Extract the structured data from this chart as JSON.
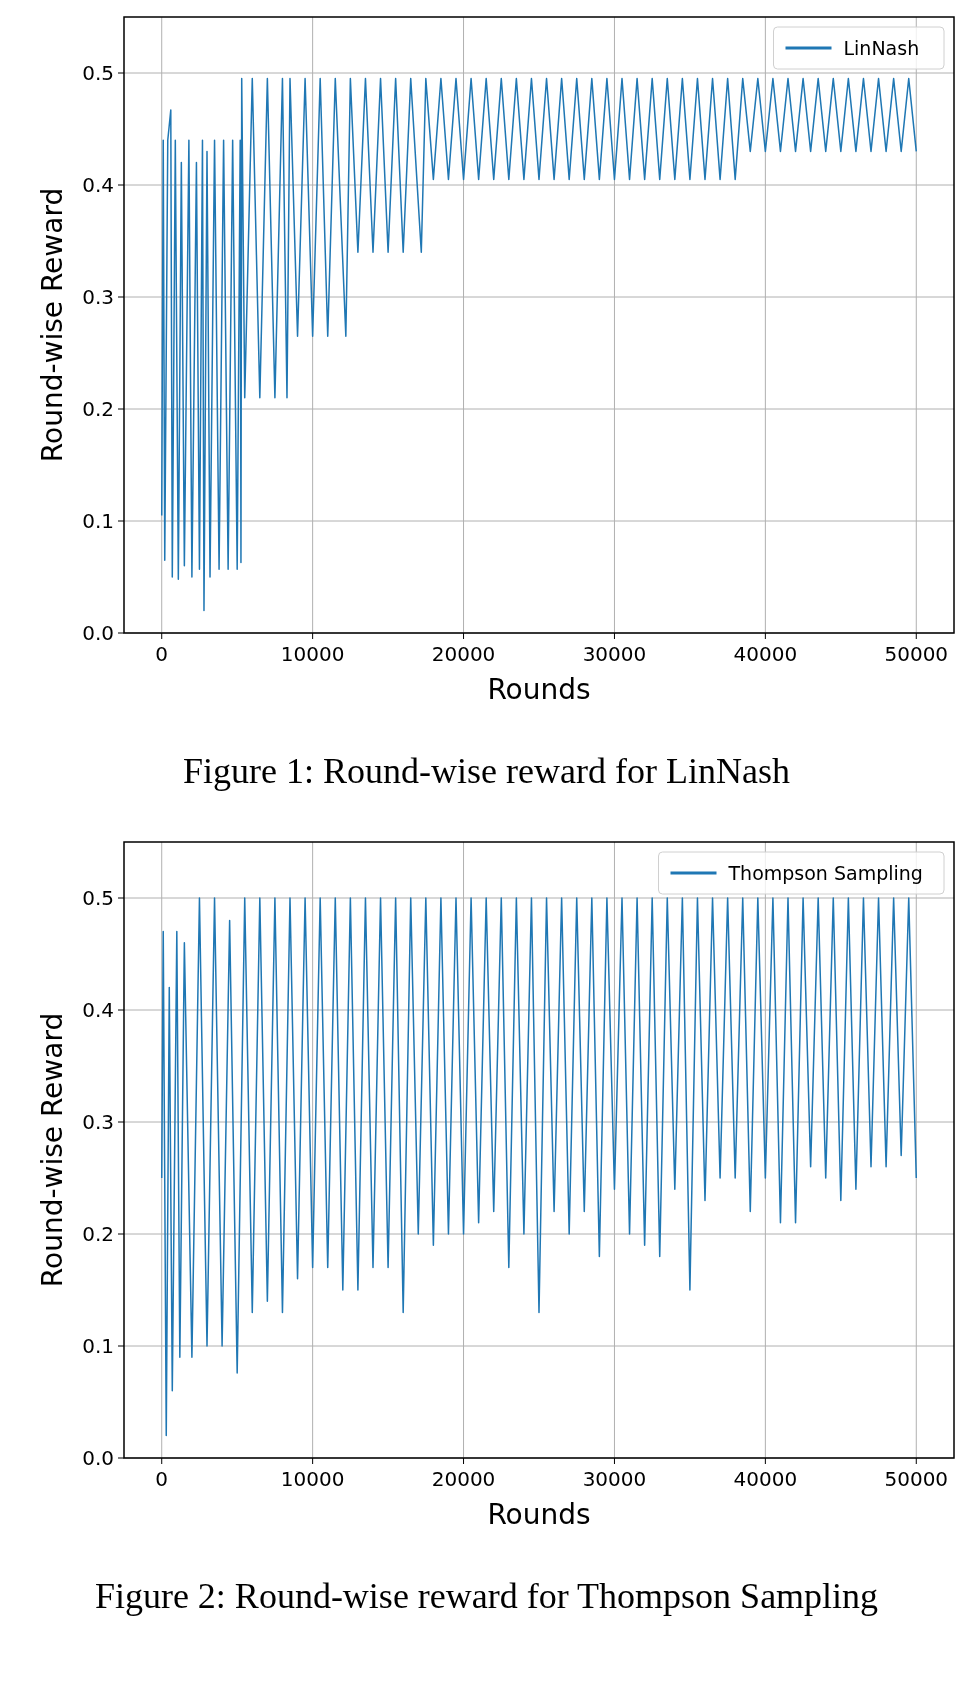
{
  "chart_data": [
    {
      "type": "line",
      "xlabel": "Rounds",
      "ylabel": "Round-wise Reward",
      "xlim": [
        -2500,
        52500
      ],
      "ylim": [
        0,
        0.55
      ],
      "xticks": [
        0,
        10000,
        20000,
        30000,
        40000,
        50000
      ],
      "yticks": [
        {
          "value": 0,
          "label": "0.0"
        },
        0.1,
        0.2,
        0.3,
        0.4,
        0.5
      ],
      "grid": true,
      "legend": "top right",
      "annotations": [
        "Figure 1: Round-wise reward for LinNash"
      ],
      "series": [
        {
          "name": "LinNash",
          "color": "#1f77b4",
          "x": [
            0,
            100,
            200,
            400,
            600,
            700,
            900,
            1100,
            1300,
            1500,
            1800,
            2000,
            2300,
            2500,
            2700,
            2800,
            3000,
            3200,
            3500,
            3800,
            4100,
            4400,
            4700,
            5000,
            5200,
            5250,
            5300,
            5500,
            6000,
            6500,
            7000,
            7500,
            8000,
            8300,
            8500,
            9000,
            9500,
            10000,
            10500,
            11000,
            11500,
            12200,
            12500,
            13000,
            13500,
            14000,
            14500,
            15000,
            15500,
            16000,
            16500,
            17200,
            17500,
            18000,
            18500,
            19000,
            19500,
            20000,
            20500,
            21000,
            21500,
            22000,
            22500,
            23000,
            23500,
            24000,
            24500,
            25000,
            25500,
            26000,
            26500,
            27000,
            27500,
            28000,
            28500,
            29000,
            29500,
            30000,
            30500,
            31000,
            31500,
            32000,
            32500,
            33000,
            33500,
            34000,
            34500,
            35000,
            35500,
            36000,
            36500,
            37000,
            37500,
            38000,
            38500,
            39000,
            39500,
            40000,
            40500,
            41000,
            41500,
            42000,
            42500,
            43000,
            43500,
            44000,
            44500,
            45000,
            45500,
            46000,
            46500,
            47000,
            47500,
            48000,
            48500,
            49000,
            49500,
            50000
          ],
          "values": [
            0.105,
            0.44,
            0.065,
            0.44,
            0.467,
            0.05,
            0.44,
            0.048,
            0.42,
            0.06,
            0.44,
            0.05,
            0.42,
            0.057,
            0.44,
            0.02,
            0.43,
            0.05,
            0.44,
            0.057,
            0.44,
            0.057,
            0.44,
            0.057,
            0.44,
            0.063,
            0.495,
            0.21,
            0.495,
            0.21,
            0.495,
            0.21,
            0.495,
            0.21,
            0.495,
            0.265,
            0.495,
            0.265,
            0.495,
            0.265,
            0.495,
            0.265,
            0.495,
            0.34,
            0.495,
            0.34,
            0.495,
            0.34,
            0.495,
            0.34,
            0.495,
            0.34,
            0.495,
            0.405,
            0.495,
            0.405,
            0.495,
            0.405,
            0.495,
            0.405,
            0.495,
            0.405,
            0.495,
            0.405,
            0.495,
            0.405,
            0.495,
            0.405,
            0.495,
            0.405,
            0.495,
            0.405,
            0.495,
            0.405,
            0.495,
            0.405,
            0.495,
            0.405,
            0.495,
            0.405,
            0.495,
            0.405,
            0.495,
            0.405,
            0.495,
            0.405,
            0.495,
            0.405,
            0.495,
            0.405,
            0.495,
            0.405,
            0.495,
            0.405,
            0.495,
            0.43,
            0.495,
            0.43,
            0.495,
            0.43,
            0.495,
            0.43,
            0.495,
            0.43,
            0.495,
            0.43,
            0.495,
            0.43,
            0.495,
            0.43,
            0.495,
            0.43,
            0.495,
            0.43,
            0.495,
            0.43,
            0.495,
            0.43
          ]
        }
      ]
    },
    {
      "type": "line",
      "xlabel": "Rounds",
      "ylabel": "Round-wise Reward",
      "xlim": [
        -2500,
        52500
      ],
      "ylim": [
        0,
        0.55
      ],
      "xticks": [
        0,
        10000,
        20000,
        30000,
        40000,
        50000
      ],
      "yticks": [
        {
          "value": 0,
          "label": "0.0"
        },
        0.1,
        0.2,
        0.3,
        0.4,
        0.5
      ],
      "grid": true,
      "legend": "top right",
      "annotations": [
        "Figure 2:  Round-wise reward for Thompson Sampling"
      ],
      "series": [
        {
          "name": "Thompson Sampling",
          "color": "#1f77b4",
          "x": [
            0,
            100,
            300,
            500,
            700,
            1000,
            1200,
            1500,
            2000,
            2500,
            3000,
            3500,
            4000,
            4500,
            5000,
            5500,
            6000,
            6500,
            7000,
            7500,
            8000,
            8500,
            9000,
            9500,
            10000,
            10500,
            11000,
            11500,
            12000,
            12500,
            13000,
            13500,
            14000,
            14500,
            15000,
            15500,
            16000,
            16500,
            17000,
            17500,
            18000,
            18500,
            19000,
            19500,
            20000,
            20500,
            21000,
            21500,
            22000,
            22500,
            23000,
            23500,
            24000,
            24500,
            25000,
            25500,
            26000,
            26500,
            27000,
            27500,
            28000,
            28500,
            29000,
            29500,
            30000,
            30500,
            31000,
            31500,
            32000,
            32500,
            33000,
            33500,
            34000,
            34500,
            35000,
            35500,
            36000,
            36500,
            37000,
            37500,
            38000,
            38500,
            39000,
            39500,
            40000,
            40500,
            41000,
            41500,
            42000,
            42500,
            43000,
            43500,
            44000,
            44500,
            45000,
            45500,
            46000,
            46500,
            47000,
            47500,
            48000,
            48500,
            49000,
            49500,
            50000
          ],
          "values": [
            0.25,
            0.47,
            0.02,
            0.42,
            0.06,
            0.47,
            0.09,
            0.46,
            0.09,
            0.5,
            0.1,
            0.5,
            0.1,
            0.48,
            0.076,
            0.5,
            0.13,
            0.5,
            0.14,
            0.5,
            0.13,
            0.5,
            0.16,
            0.5,
            0.17,
            0.5,
            0.17,
            0.5,
            0.15,
            0.5,
            0.15,
            0.5,
            0.17,
            0.5,
            0.17,
            0.5,
            0.13,
            0.5,
            0.2,
            0.5,
            0.19,
            0.5,
            0.2,
            0.5,
            0.2,
            0.5,
            0.21,
            0.5,
            0.22,
            0.5,
            0.17,
            0.5,
            0.2,
            0.5,
            0.13,
            0.5,
            0.22,
            0.5,
            0.2,
            0.5,
            0.22,
            0.5,
            0.18,
            0.5,
            0.24,
            0.5,
            0.2,
            0.5,
            0.19,
            0.5,
            0.18,
            0.5,
            0.24,
            0.5,
            0.15,
            0.5,
            0.23,
            0.5,
            0.25,
            0.5,
            0.25,
            0.5,
            0.22,
            0.5,
            0.25,
            0.5,
            0.21,
            0.5,
            0.21,
            0.5,
            0.26,
            0.5,
            0.25,
            0.5,
            0.23,
            0.5,
            0.24,
            0.5,
            0.26,
            0.5,
            0.26,
            0.5,
            0.27,
            0.5,
            0.25
          ]
        }
      ]
    }
  ]
}
